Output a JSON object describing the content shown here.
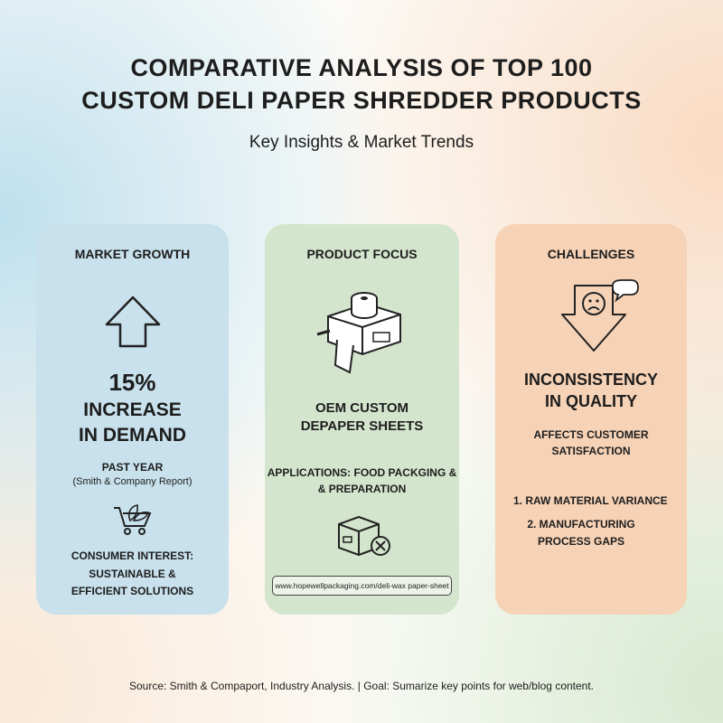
{
  "header": {
    "title": [
      "COMPARATIVE ANALYSIS OF TOP 100",
      "CUSTOM DELI PAPER SHREDDER PRODUCTS"
    ],
    "subtitle": "Key Insights & Market Trends"
  },
  "cards": [
    {
      "title": "MARKET GROWTH",
      "lines": [
        "15%",
        "INCREASE",
        "IN DEMAND",
        "PAST YEAR",
        "(Smith & Company Report)",
        "CONSUMER INTEREST:",
        "SUSTAINABLE &",
        "EFFICIENT SOLUTIONS"
      ]
    },
    {
      "title": "PRODUCT FOCUS",
      "lines": [
        "OEM CUSTOM",
        "DEPAPER SHEETS",
        "APPLICATIONS: FOOD PACKGING &",
        "& PREPARATION"
      ],
      "url": "www.hopewellpackaging.com/deli-wax paper-sheet"
    },
    {
      "title": "CHALLENGES",
      "lines": [
        "INCONSISTENCY",
        "IN QUALITY",
        "AFFECTS CUSTOMER",
        "SATISFACTION"
      ],
      "list": [
        "1. RAW MATERIAL VARIANCE",
        "2. MANUFACTURING PROCESS GAPS"
      ]
    }
  ],
  "footer": "Source: Smith & Compaport, Industry Analysis. | Goal: Sumarize key points for web/blog content."
}
